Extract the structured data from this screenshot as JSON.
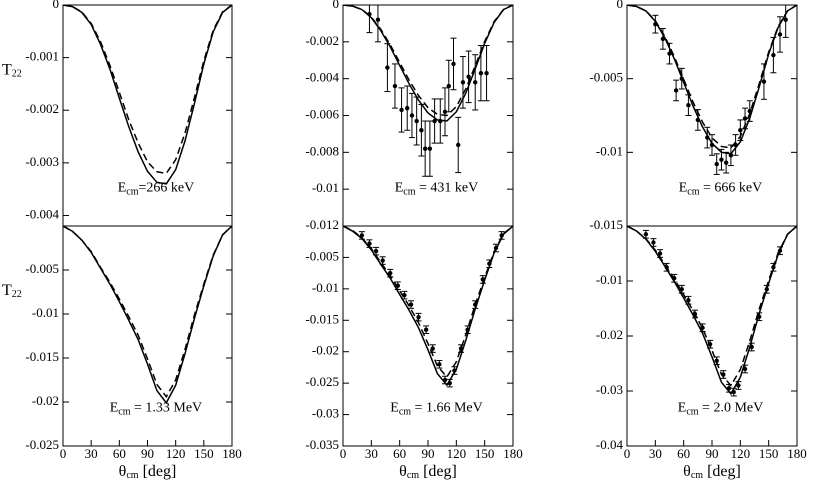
{
  "chart_data": [
    {
      "type": "line",
      "ylim": [
        -0.0042,
        0
      ],
      "yticks": [
        0,
        -0.001,
        -0.002,
        -0.003,
        -0.004
      ],
      "xlim": [
        0,
        180
      ],
      "y_label": {
        "main": "T",
        "sub": "22"
      },
      "annotation": {
        "main": "E",
        "sub": "cm",
        "rest": "=266 keV"
      },
      "series": [
        {
          "style": "solid",
          "color": "#000000",
          "x": [
            0,
            10,
            20,
            30,
            40,
            50,
            60,
            70,
            80,
            90,
            100,
            110,
            120,
            130,
            140,
            150,
            160,
            170,
            180
          ],
          "values": [
            0,
            -3e-05,
            -0.00014,
            -0.00037,
            -0.00075,
            -0.00122,
            -0.00177,
            -0.00231,
            -0.00279,
            -0.00316,
            -0.00337,
            -0.0034,
            -0.00313,
            -0.00258,
            -0.00187,
            -0.00112,
            -0.00051,
            -0.00014,
            0
          ]
        },
        {
          "style": "dashed",
          "color": "#000000",
          "x": [
            0,
            10,
            20,
            30,
            40,
            50,
            60,
            70,
            80,
            90,
            100,
            110,
            120,
            130,
            140,
            150,
            160,
            170,
            180
          ],
          "values": [
            0,
            -3e-05,
            -0.00013,
            -0.00035,
            -0.0007,
            -0.00115,
            -0.00166,
            -0.00218,
            -0.00262,
            -0.00298,
            -0.00317,
            -0.0032,
            -0.00294,
            -0.00243,
            -0.00176,
            -0.00106,
            -0.00048,
            -0.00013,
            0
          ]
        }
      ]
    },
    {
      "type": "line",
      "ylim": [
        -0.012,
        0
      ],
      "yticks": [
        0,
        -0.002,
        -0.004,
        -0.006,
        -0.008,
        -0.01,
        -0.012
      ],
      "xlim": [
        0,
        180
      ],
      "annotation": {
        "main": "E",
        "sub": "cm",
        "rest": " = 431 keV"
      },
      "series": [
        {
          "style": "solid",
          "color": "#000000",
          "x": [
            0,
            10,
            20,
            30,
            40,
            50,
            60,
            70,
            80,
            90,
            100,
            110,
            120,
            130,
            140,
            150,
            160,
            170,
            180
          ],
          "values": [
            0,
            -6e-05,
            -0.00025,
            -0.00069,
            -0.00139,
            -0.00227,
            -0.00328,
            -0.00428,
            -0.00517,
            -0.00586,
            -0.00624,
            -0.0063,
            -0.0058,
            -0.00479,
            -0.00347,
            -0.00208,
            -0.00095,
            -0.00025,
            0
          ]
        },
        {
          "style": "dashed",
          "color": "#000000",
          "x": [
            0,
            10,
            20,
            30,
            40,
            50,
            60,
            70,
            80,
            90,
            100,
            110,
            120,
            130,
            140,
            150,
            160,
            170,
            180
          ],
          "values": [
            0,
            -6e-05,
            -0.00024,
            -0.00066,
            -0.00132,
            -0.00216,
            -0.00312,
            -0.00408,
            -0.00492,
            -0.00558,
            -0.00594,
            -0.006,
            -0.00552,
            -0.00456,
            -0.0033,
            -0.00198,
            -0.0009,
            -0.00024,
            0
          ]
        },
        {
          "style": "points",
          "color": "#000000",
          "x": [
            28,
            37,
            47,
            55,
            62,
            68,
            73,
            78,
            83,
            87,
            92,
            97,
            103,
            108,
            112,
            117,
            122,
            127,
            133,
            140,
            146,
            152
          ],
          "values": [
            -0.0005,
            -0.0008,
            -0.0034,
            -0.0044,
            -0.0057,
            -0.0056,
            -0.006,
            -0.0063,
            -0.0068,
            -0.0078,
            -0.0078,
            -0.0063,
            -0.0063,
            -0.0058,
            -0.0044,
            -0.0032,
            -0.0076,
            -0.0042,
            -0.0039,
            -0.0042,
            -0.0037,
            -0.0037
          ],
          "errors": [
            0.001,
            0.0012,
            0.0013,
            0.0012,
            0.0012,
            0.0012,
            0.0012,
            0.0013,
            0.0014,
            0.0015,
            0.0015,
            0.0012,
            0.0012,
            0.0013,
            0.0014,
            0.0014,
            0.0015,
            0.0014,
            0.0014,
            0.0015,
            0.0015,
            0.0015
          ]
        }
      ]
    },
    {
      "type": "line",
      "ylim": [
        -0.015,
        0
      ],
      "yticks": [
        0,
        -0.005,
        -0.01,
        -0.015
      ],
      "xlim": [
        0,
        180
      ],
      "annotation": {
        "main": "E",
        "sub": "cm",
        "rest": " = 666 keV"
      },
      "series": [
        {
          "style": "solid",
          "color": "#000000",
          "x": [
            0,
            10,
            20,
            30,
            40,
            50,
            60,
            70,
            80,
            90,
            100,
            110,
            120,
            130,
            140,
            150,
            160,
            170,
            180
          ],
          "values": [
            0,
            -0.0001,
            -0.0004,
            -0.00111,
            -0.00222,
            -0.00364,
            -0.00525,
            -0.00687,
            -0.00828,
            -0.00939,
            -0.01,
            -0.0101,
            -0.00929,
            -0.00768,
            -0.00556,
            -0.00333,
            -0.00152,
            -0.0004,
            0
          ]
        },
        {
          "style": "dashed",
          "color": "#000000",
          "x": [
            0,
            10,
            20,
            30,
            40,
            50,
            60,
            70,
            80,
            90,
            100,
            110,
            120,
            130,
            140,
            150,
            160,
            170,
            180
          ],
          "values": [
            0,
            -0.0001,
            -0.00039,
            -0.00107,
            -0.00213,
            -0.00349,
            -0.00504,
            -0.0066,
            -0.00795,
            -0.00902,
            -0.0096,
            -0.0097,
            -0.00892,
            -0.00737,
            -0.00534,
            -0.0032,
            -0.00146,
            -0.00039,
            0
          ]
        },
        {
          "style": "points",
          "color": "#000000",
          "x": [
            30,
            38,
            45,
            52,
            58,
            65,
            75,
            85,
            90,
            95,
            100,
            105,
            110,
            115,
            120,
            125,
            130,
            145,
            155,
            162,
            168
          ],
          "values": [
            -0.0013,
            -0.0023,
            -0.0033,
            -0.0058,
            -0.005,
            -0.0068,
            -0.0078,
            -0.009,
            -0.0095,
            -0.0108,
            -0.0105,
            -0.0107,
            -0.0102,
            -0.0095,
            -0.0085,
            -0.0077,
            -0.0072,
            -0.0052,
            -0.0034,
            -0.002,
            -0.001
          ],
          "errors": [
            0.0006,
            0.0007,
            0.0007,
            0.0007,
            0.0007,
            0.0007,
            0.0007,
            0.0007,
            0.0007,
            0.0007,
            0.0007,
            0.0007,
            0.0007,
            0.0007,
            0.0007,
            0.0007,
            0.0007,
            0.0012,
            0.0012,
            0.0012,
            0.0012
          ]
        }
      ]
    },
    {
      "type": "line",
      "ylim": [
        -0.025,
        0
      ],
      "yticks": [
        -0.025,
        -0.02,
        -0.015,
        -0.01,
        -0.005
      ],
      "xlim": [
        0,
        180
      ],
      "xticks": [
        0,
        30,
        60,
        90,
        120,
        150,
        180
      ],
      "y_label": {
        "main": "T",
        "sub": "22"
      },
      "x_label": {
        "main": "θ",
        "sub": "cm",
        "rest": " [deg]"
      },
      "annotation": {
        "main": "E",
        "sub": "cm",
        "rest": " = 1.33 MeV"
      },
      "series": [
        {
          "style": "solid",
          "color": "#000000",
          "x": [
            0,
            10,
            20,
            30,
            40,
            50,
            60,
            70,
            80,
            90,
            100,
            110,
            120,
            130,
            140,
            150,
            160,
            170,
            180
          ],
          "values": [
            0,
            -0.0006,
            -0.0016,
            -0.003,
            -0.0048,
            -0.0066,
            -0.0086,
            -0.0107,
            -0.0129,
            -0.0157,
            -0.0187,
            -0.0201,
            -0.0181,
            -0.0145,
            -0.0105,
            -0.0068,
            -0.0034,
            -0.001,
            0
          ]
        },
        {
          "style": "dashed",
          "color": "#000000",
          "x": [
            0,
            10,
            20,
            30,
            40,
            50,
            60,
            70,
            80,
            90,
            100,
            110,
            120,
            130,
            140,
            150,
            160,
            170,
            180
          ],
          "values": [
            0,
            -0.0006,
            -0.0016,
            -0.0029,
            -0.0047,
            -0.0064,
            -0.0083,
            -0.0103,
            -0.0124,
            -0.0151,
            -0.018,
            -0.0194,
            -0.0175,
            -0.014,
            -0.0101,
            -0.0066,
            -0.0033,
            -0.001,
            0
          ]
        }
      ]
    },
    {
      "type": "line",
      "ylim": [
        -0.035,
        0
      ],
      "yticks": [
        -0.035,
        -0.03,
        -0.025,
        -0.02,
        -0.015,
        -0.01,
        -0.005
      ],
      "xlim": [
        0,
        180
      ],
      "xticks": [
        0,
        30,
        60,
        90,
        120,
        150,
        180
      ],
      "x_label": {
        "main": "θ",
        "sub": "cm",
        "rest": " [deg]"
      },
      "annotation": {
        "main": "E",
        "sub": "cm",
        "rest": " = 1.66 MeV"
      },
      "series": [
        {
          "style": "solid",
          "color": "#000000",
          "x": [
            0,
            10,
            20,
            30,
            40,
            50,
            60,
            70,
            80,
            90,
            100,
            110,
            120,
            130,
            140,
            150,
            160,
            170,
            180
          ],
          "values": [
            0,
            -0.0008,
            -0.002,
            -0.0038,
            -0.0061,
            -0.0083,
            -0.0109,
            -0.0134,
            -0.0162,
            -0.0197,
            -0.0235,
            -0.0253,
            -0.0228,
            -0.0182,
            -0.0132,
            -0.0086,
            -0.0043,
            -0.0013,
            0
          ]
        },
        {
          "style": "dashed",
          "color": "#000000",
          "x": [
            0,
            10,
            20,
            30,
            40,
            50,
            60,
            70,
            80,
            90,
            100,
            110,
            120,
            130,
            140,
            150,
            160,
            170,
            180
          ],
          "values": [
            0,
            -0.0007,
            -0.0019,
            -0.0036,
            -0.0058,
            -0.0079,
            -0.0103,
            -0.0127,
            -0.0154,
            -0.0187,
            -0.0223,
            -0.024,
            -0.0216,
            -0.0173,
            -0.0125,
            -0.0082,
            -0.0041,
            -0.0012,
            0
          ]
        },
        {
          "style": "points",
          "color": "#000000",
          "x": [
            20,
            28,
            35,
            42,
            50,
            58,
            65,
            72,
            80,
            88,
            95,
            102,
            108,
            113,
            118,
            125,
            132,
            140,
            148,
            155,
            162,
            168
          ],
          "values": [
            -0.0015,
            -0.0028,
            -0.004,
            -0.0055,
            -0.0075,
            -0.0095,
            -0.011,
            -0.0125,
            -0.0145,
            -0.0165,
            -0.0195,
            -0.022,
            -0.0245,
            -0.025,
            -0.023,
            -0.0195,
            -0.0165,
            -0.0125,
            -0.0085,
            -0.006,
            -0.0035,
            -0.0015
          ],
          "errors": [
            0.0006,
            0.0006,
            0.0006,
            0.0006,
            0.0006,
            0.0006,
            0.0006,
            0.0006,
            0.0006,
            0.0006,
            0.0006,
            0.0006,
            0.0006,
            0.0006,
            0.0006,
            0.0006,
            0.0006,
            0.0006,
            0.0006,
            0.0006,
            0.0006,
            0.0006
          ]
        }
      ]
    },
    {
      "type": "line",
      "ylim": [
        -0.04,
        0
      ],
      "yticks": [
        -0.04,
        -0.03,
        -0.02,
        -0.01
      ],
      "xlim": [
        0,
        180
      ],
      "xticks": [
        0,
        30,
        60,
        90,
        120,
        150,
        180
      ],
      "x_label": {
        "main": "θ",
        "sub": "cm",
        "rest": " [deg]"
      },
      "annotation": {
        "main": "E",
        "sub": "cm",
        "rest": " = 2.0 MeV"
      },
      "series": [
        {
          "style": "solid",
          "color": "#000000",
          "x": [
            0,
            10,
            20,
            30,
            40,
            50,
            60,
            70,
            80,
            90,
            100,
            110,
            120,
            130,
            140,
            150,
            160,
            170,
            180
          ],
          "values": [
            0,
            -0.0009,
            -0.0024,
            -0.0046,
            -0.0073,
            -0.0101,
            -0.0131,
            -0.0162,
            -0.0195,
            -0.0238,
            -0.0284,
            -0.0305,
            -0.0275,
            -0.022,
            -0.0159,
            -0.0104,
            -0.0052,
            -0.0015,
            0
          ]
        },
        {
          "style": "dashed",
          "color": "#000000",
          "x": [
            0,
            10,
            20,
            30,
            40,
            50,
            60,
            70,
            80,
            90,
            100,
            110,
            120,
            130,
            140,
            150,
            160,
            170,
            180
          ],
          "values": [
            0,
            -0.0009,
            -0.0023,
            -0.0044,
            -0.007,
            -0.0096,
            -0.0125,
            -0.0154,
            -0.0186,
            -0.0226,
            -0.027,
            -0.029,
            -0.0261,
            -0.0209,
            -0.0151,
            -0.0099,
            -0.0049,
            -0.0015,
            0
          ]
        },
        {
          "style": "points",
          "color": "#000000",
          "x": [
            20,
            28,
            35,
            42,
            50,
            58,
            65,
            72,
            80,
            88,
            95,
            102,
            108,
            113,
            118,
            125,
            132,
            140,
            148,
            155,
            162
          ],
          "values": [
            -0.0015,
            -0.003,
            -0.005,
            -0.0075,
            -0.0095,
            -0.0115,
            -0.0135,
            -0.016,
            -0.0185,
            -0.0215,
            -0.0245,
            -0.027,
            -0.0295,
            -0.0302,
            -0.029,
            -0.026,
            -0.022,
            -0.0165,
            -0.0115,
            -0.0075,
            -0.0045
          ],
          "errors": [
            0.0007,
            0.0007,
            0.0007,
            0.0007,
            0.0007,
            0.0007,
            0.0007,
            0.0007,
            0.0007,
            0.0007,
            0.0007,
            0.0007,
            0.0007,
            0.0007,
            0.0007,
            0.0007,
            0.0007,
            0.0007,
            0.0007,
            0.0007,
            0.0007
          ]
        }
      ]
    }
  ]
}
